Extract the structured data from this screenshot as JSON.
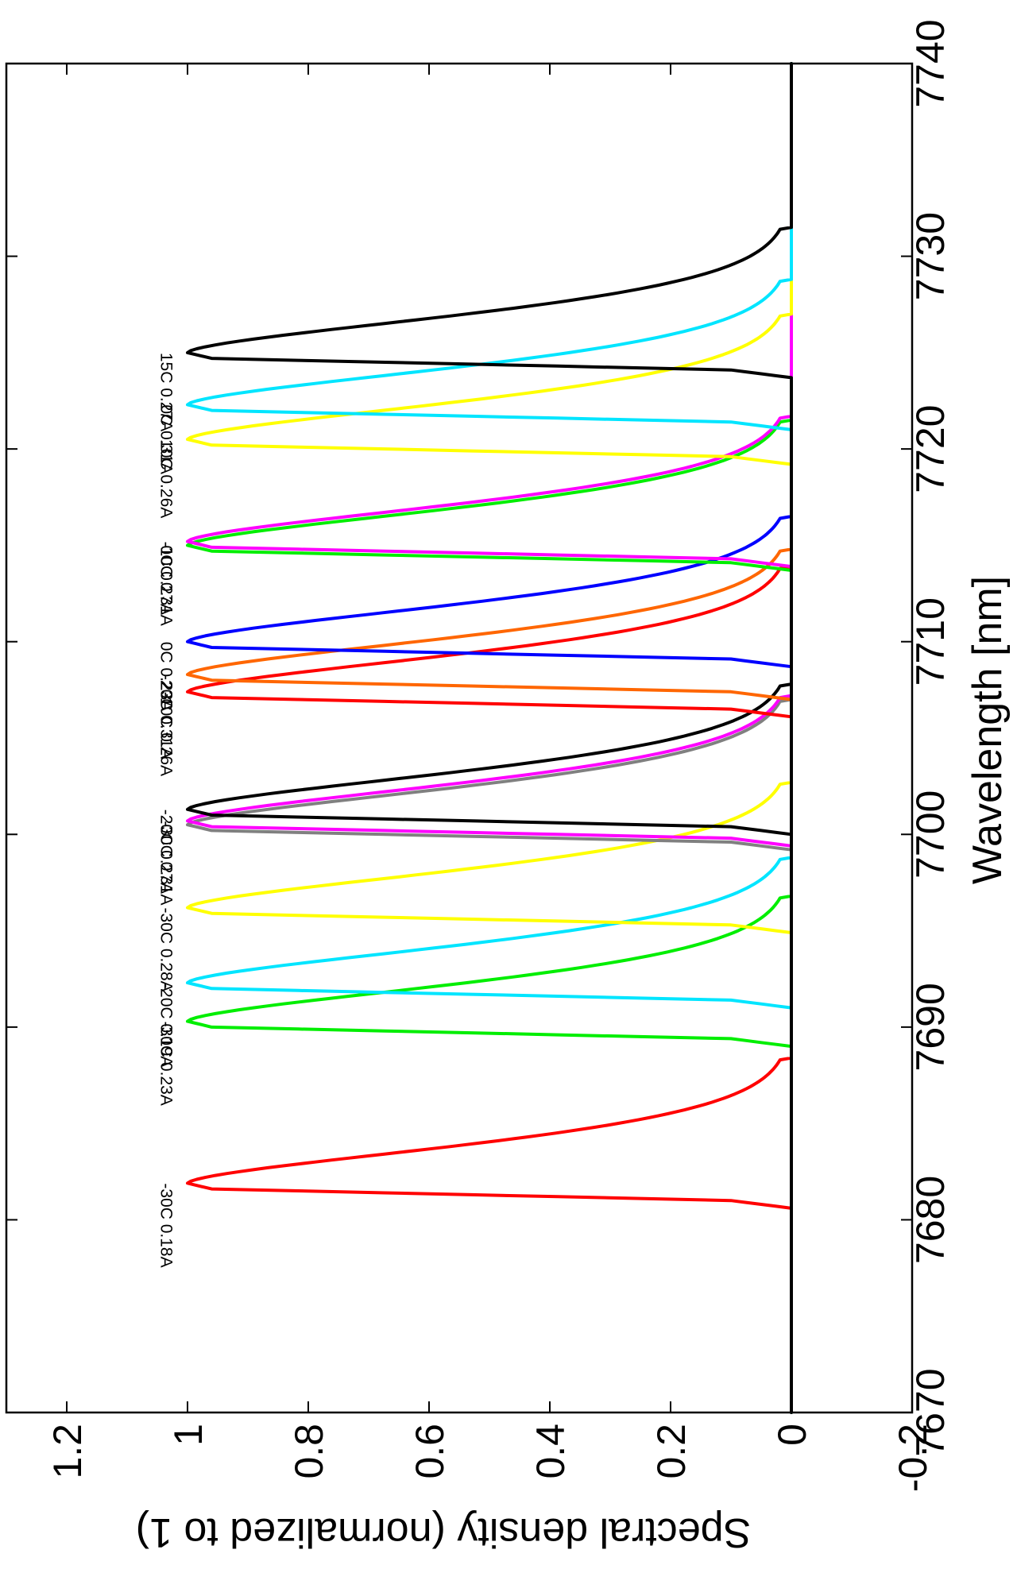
{
  "chart_data": {
    "type": "line",
    "title": "",
    "xlabel": "Wavelength [nm]",
    "ylabel": "Spectral density (normalized to 1)",
    "xlim": [
      7670,
      7740
    ],
    "ylim": [
      -0.2,
      1.3
    ],
    "xticks": [
      7670,
      7680,
      7690,
      7700,
      7710,
      7720,
      7730,
      7740
    ],
    "xtick_labels": [
      "7670",
      "7680",
      "7690",
      "7700",
      "7710",
      "7720",
      "7730",
      "7740"
    ],
    "yticks": [
      -0.2,
      0,
      0.2,
      0.4,
      0.6,
      0.8,
      1,
      1.2
    ],
    "ytick_labels": [
      "-0.2",
      "0",
      "0.2",
      "0.4",
      "0.6",
      "0.8",
      "1",
      "1.2"
    ],
    "grid": false,
    "orientation": "rotated 90 degrees clockwise",
    "series": [
      {
        "color": "#ff0000",
        "peak": 7681.9,
        "height": 1.0,
        "label": "-30C 0.18A"
      },
      {
        "color": "#00ee00",
        "peak": 7690.3,
        "height": 1.0,
        "label": "-30C 0.23A"
      },
      {
        "color": "#00e5ff",
        "peak": 7692.3,
        "height": 1.0,
        "label": "-20C 0.19A"
      },
      {
        "color": "#ffff00",
        "peak": 7696.2,
        "height": 1.0,
        "label": "-30C 0.28A"
      },
      {
        "color": "#808080",
        "peak": 7700.5,
        "height": 1.0,
        "label": ""
      },
      {
        "color": "#ff00ff",
        "peak": 7700.7,
        "height": 1.0,
        "label": "-30C 0.31A"
      },
      {
        "color": "#000000",
        "peak": 7701.3,
        "height": 1.0,
        "label": "-20C 0.27A"
      },
      {
        "color": "#ff0000",
        "peak": 7707.4,
        "height": 1.0,
        "label": "-10C 0.26A"
      },
      {
        "color": "#ff6600",
        "peak": 7708.3,
        "height": 1.0,
        "label": "-20C 0.31A"
      },
      {
        "color": "#0000ff",
        "peak": 7710.0,
        "height": 1.0,
        "label": "0C 0.23A"
      },
      {
        "color": "#00ee00",
        "peak": 7715.0,
        "height": 1.0,
        "label": "0C 0.27A"
      },
      {
        "color": "#ff00ff",
        "peak": 7715.2,
        "height": 1.0,
        "label": "-10C 0.31A"
      },
      {
        "color": "#ffff00",
        "peak": 7720.5,
        "height": 1.0,
        "label": "10C 0.26A"
      },
      {
        "color": "#00e5ff",
        "peak": 7722.3,
        "height": 1.0,
        "label": "0C 0.31A"
      },
      {
        "color": "#000000",
        "peak": 7725.0,
        "height": 1.0,
        "label": "15C 0.27A"
      }
    ]
  }
}
